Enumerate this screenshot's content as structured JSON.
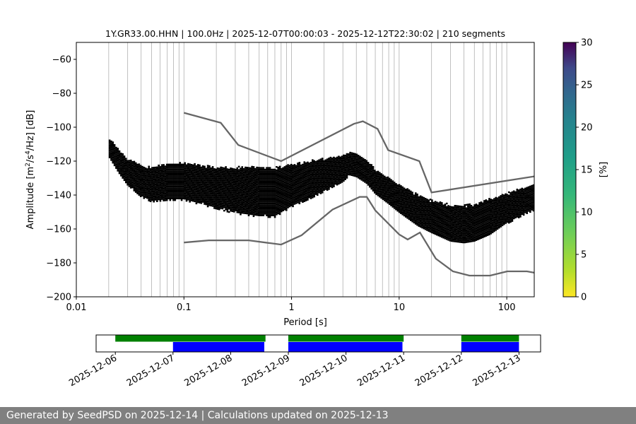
{
  "chart_data": [
    {
      "type": "heatmap",
      "title": "1Y.GR33.00.HHN | 100.0Hz | 2025-12-07T00:00:03 - 2025-12-12T22:30:02 | 210 segments",
      "xlabel": "Period [s]",
      "ylabel_main": "Amplitude [m",
      "ylabel_sup1": "2",
      "ylabel_mid": "/s",
      "ylabel_sup2": "4",
      "ylabel_end": "/Hz] [dB]",
      "xscale": "log",
      "xlim": [
        0.01,
        180
      ],
      "ylim": [
        -200,
        -50
      ],
      "xticks": [
        {
          "value": 0.01,
          "label": "0.01"
        },
        {
          "value": 0.1,
          "label": "0.1"
        },
        {
          "value": 1,
          "label": "1"
        },
        {
          "value": 10,
          "label": "10"
        },
        {
          "value": 100,
          "label": "100"
        }
      ],
      "yticks": [
        {
          "value": -60,
          "label": "−60"
        },
        {
          "value": -80,
          "label": "−80"
        },
        {
          "value": -100,
          "label": "−100"
        },
        {
          "value": -120,
          "label": "−120"
        },
        {
          "value": -140,
          "label": "−140"
        },
        {
          "value": -160,
          "label": "−160"
        },
        {
          "value": -180,
          "label": "−180"
        },
        {
          "value": -200,
          "label": "−200"
        }
      ],
      "grid": "vertical log-period lines",
      "density_mode": {
        "period": [
          0.02,
          0.025,
          0.03,
          0.04,
          0.05,
          0.07,
          0.1,
          0.15,
          0.2,
          0.3,
          0.4,
          0.5,
          0.7,
          1,
          1.5,
          2,
          3,
          3.5,
          4,
          5,
          6,
          8,
          10,
          15,
          20,
          30,
          40,
          50,
          70,
          100,
          150,
          180
        ],
        "db": [
          -112,
          -120,
          -126,
          -131,
          -133,
          -131,
          -130,
          -132,
          -134,
          -136,
          -137,
          -139,
          -140,
          -136,
          -132,
          -129,
          -124,
          -121,
          -122,
          -127,
          -133,
          -139,
          -144,
          -152,
          -157,
          -162,
          -163,
          -162,
          -158,
          -152,
          -146,
          -144
        ],
        "spread_low_db": [
          6,
          8,
          9,
          11,
          12,
          13,
          14,
          15,
          15,
          16,
          16,
          15,
          14,
          12,
          11,
          10,
          9,
          8,
          8,
          7,
          7,
          7,
          7,
          7,
          6,
          6,
          6,
          6,
          6,
          5,
          5,
          5
        ],
        "spread_high_db": [
          6,
          7,
          8,
          9,
          10,
          10,
          10,
          10,
          11,
          13,
          15,
          16,
          17,
          15,
          13,
          11,
          8,
          7,
          7,
          8,
          9,
          10,
          11,
          13,
          15,
          17,
          18,
          18,
          17,
          14,
          12,
          11
        ]
      },
      "noise_models": {
        "upper": {
          "period": [
            0.1,
            0.22,
            0.32,
            0.8,
            3.8,
            4.6,
            6.3,
            7.9,
            15.4,
            20,
            180
          ],
          "db": [
            -91.5,
            -97.4,
            -110.5,
            -120,
            -98,
            -96.5,
            -101,
            -113.5,
            -120,
            -138.5,
            -129
          ]
        },
        "lower": {
          "period": [
            0.1,
            0.17,
            0.4,
            0.8,
            1.24,
            2.4,
            4.3,
            5,
            6,
            10,
            12,
            15.6,
            21.9,
            31.6,
            45,
            70,
            101,
            154,
            180
          ],
          "db": [
            -168,
            -166.7,
            -166.7,
            -169.2,
            -163.7,
            -148.6,
            -141.1,
            -141.1,
            -149.1,
            -163.2,
            -166.2,
            -162.1,
            -177.5,
            -185,
            -187.5,
            -187.5,
            -185,
            -185,
            -185.8
          ]
        },
        "color": "#666666"
      }
    },
    {
      "type": "colorbar",
      "label": "[%]",
      "range": [
        0,
        30
      ],
      "ticks": [
        0,
        5,
        10,
        15,
        20,
        25,
        30
      ],
      "colormap": "viridis_r"
    },
    {
      "type": "timeline",
      "xlim": [
        "2025-12-05T16:00",
        "2025-12-13T09:00"
      ],
      "tick_labels": [
        "2025-12-06",
        "2025-12-07",
        "2025-12-08",
        "2025-12-09",
        "2025-12-10",
        "2025-12-11",
        "2025-12-12",
        "2025-12-13"
      ],
      "green_bars": [
        [
          "2025-12-06T00:00",
          "2025-12-08T14:30"
        ],
        [
          "2025-12-09T00:00",
          "2025-12-11T00:00"
        ],
        [
          "2025-12-12T00:00",
          "2025-12-13T00:00"
        ]
      ],
      "blue_bars": [
        [
          "2025-12-07T00:00",
          "2025-12-08T14:00"
        ],
        [
          "2025-12-09T00:00",
          "2025-12-10T23:30"
        ],
        [
          "2025-12-12T00:00",
          "2025-12-13T00:00"
        ]
      ],
      "green_color": "#008000",
      "blue_color": "#0000ff"
    }
  ],
  "footer": {
    "text": "Generated by SeedPSD on 2025-12-14 | Calculations updated on 2025-12-13"
  }
}
